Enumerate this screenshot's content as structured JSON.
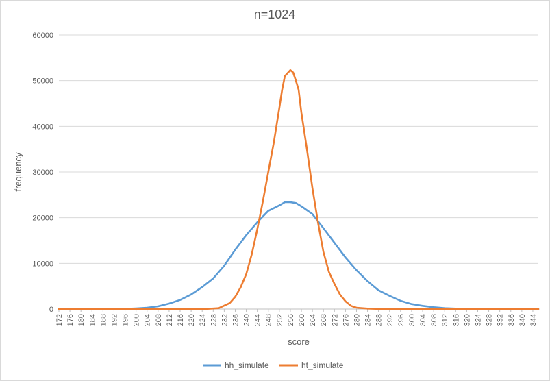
{
  "chart_data": {
    "type": "line",
    "title": "n=1024",
    "xlabel": "score",
    "ylabel": "frequency",
    "xlim": [
      172,
      346
    ],
    "ylim": [
      0,
      60000
    ],
    "y_ticks": [
      "0",
      "10000",
      "20000",
      "30000",
      "40000",
      "50000",
      "60000"
    ],
    "x_ticks": [
      "172",
      "176",
      "180",
      "184",
      "188",
      "192",
      "196",
      "200",
      "204",
      "208",
      "212",
      "216",
      "220",
      "224",
      "228",
      "232",
      "236",
      "240",
      "244",
      "248",
      "252",
      "256",
      "260",
      "264",
      "268",
      "272",
      "276",
      "280",
      "284",
      "288",
      "292",
      "296",
      "300",
      "304",
      "308",
      "312",
      "316",
      "320",
      "324",
      "328",
      "332",
      "336",
      "340",
      "344"
    ],
    "grid": true,
    "legend_position": "bottom",
    "series": [
      {
        "name": "hh_simulate",
        "color": "#5b9bd5",
        "points": [
          [
            172,
            0
          ],
          [
            196,
            50
          ],
          [
            200,
            150
          ],
          [
            204,
            300
          ],
          [
            208,
            600
          ],
          [
            212,
            1200
          ],
          [
            216,
            2000
          ],
          [
            220,
            3200
          ],
          [
            224,
            4800
          ],
          [
            228,
            6700
          ],
          [
            232,
            9500
          ],
          [
            236,
            13000
          ],
          [
            240,
            16200
          ],
          [
            244,
            19000
          ],
          [
            248,
            21500
          ],
          [
            252,
            22700
          ],
          [
            254,
            23400
          ],
          [
            256,
            23400
          ],
          [
            258,
            23200
          ],
          [
            260,
            22500
          ],
          [
            264,
            20800
          ],
          [
            268,
            17700
          ],
          [
            272,
            14500
          ],
          [
            276,
            11300
          ],
          [
            280,
            8500
          ],
          [
            284,
            6100
          ],
          [
            288,
            4100
          ],
          [
            292,
            2900
          ],
          [
            296,
            1800
          ],
          [
            300,
            1100
          ],
          [
            304,
            700
          ],
          [
            308,
            400
          ],
          [
            312,
            200
          ],
          [
            316,
            100
          ],
          [
            320,
            50
          ],
          [
            346,
            0
          ]
        ]
      },
      {
        "name": "ht_simulate",
        "color": "#ed7d31",
        "points": [
          [
            172,
            0
          ],
          [
            226,
            50
          ],
          [
            230,
            200
          ],
          [
            234,
            1300
          ],
          [
            236,
            2700
          ],
          [
            238,
            4800
          ],
          [
            240,
            7700
          ],
          [
            242,
            12000
          ],
          [
            244,
            17500
          ],
          [
            246,
            23500
          ],
          [
            248,
            30000
          ],
          [
            250,
            36500
          ],
          [
            252,
            44000
          ],
          [
            253,
            48000
          ],
          [
            254,
            51000
          ],
          [
            256,
            52300
          ],
          [
            257,
            51800
          ],
          [
            258,
            50000
          ],
          [
            259,
            48000
          ],
          [
            260,
            43000
          ],
          [
            262,
            35000
          ],
          [
            264,
            26500
          ],
          [
            266,
            19000
          ],
          [
            268,
            12500
          ],
          [
            270,
            8100
          ],
          [
            272,
            5500
          ],
          [
            274,
            3200
          ],
          [
            276,
            1700
          ],
          [
            278,
            700
          ],
          [
            280,
            300
          ],
          [
            284,
            100
          ],
          [
            288,
            30
          ],
          [
            346,
            0
          ]
        ]
      }
    ]
  }
}
